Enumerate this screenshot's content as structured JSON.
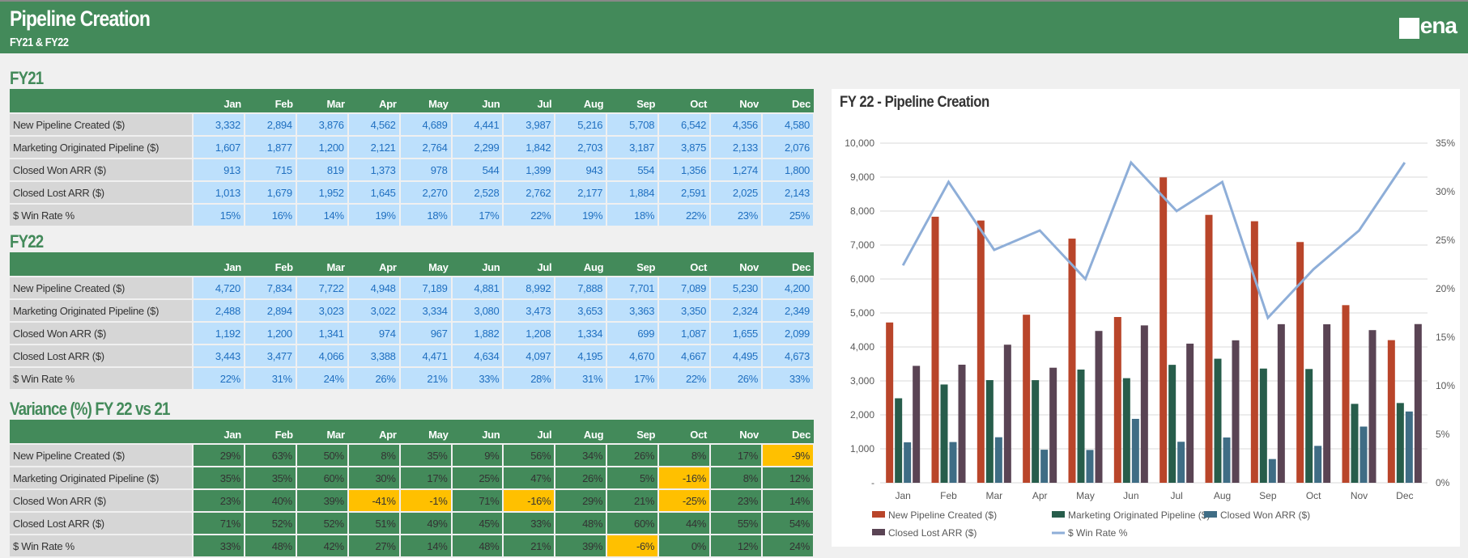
{
  "header": {
    "title": "Pipeline Creation",
    "subtitle": "FY21 & FY22",
    "logo": "vena"
  },
  "months": [
    "Jan",
    "Feb",
    "Mar",
    "Apr",
    "May",
    "Jun",
    "Jul",
    "Aug",
    "Sep",
    "Oct",
    "Nov",
    "Dec"
  ],
  "fy21": {
    "title": "FY21",
    "rows": [
      {
        "label": "New Pipeline Created ($)",
        "values": [
          "3,332",
          "2,894",
          "3,876",
          "4,562",
          "4,689",
          "4,441",
          "3,987",
          "5,216",
          "5,708",
          "6,542",
          "4,356",
          "4,580"
        ]
      },
      {
        "label": "Marketing Originated Pipeline ($)",
        "values": [
          "1,607",
          "1,877",
          "1,200",
          "2,121",
          "2,764",
          "2,299",
          "1,842",
          "2,703",
          "3,187",
          "3,875",
          "2,133",
          "2,076"
        ]
      },
      {
        "label": "Closed Won ARR ($)",
        "values": [
          "913",
          "715",
          "819",
          "1,373",
          "978",
          "544",
          "1,399",
          "943",
          "554",
          "1,356",
          "1,274",
          "1,800"
        ]
      },
      {
        "label": "Closed Lost ARR ($)",
        "values": [
          "1,013",
          "1,679",
          "1,952",
          "1,645",
          "2,270",
          "2,528",
          "2,762",
          "2,177",
          "1,884",
          "2,591",
          "2,025",
          "2,143"
        ]
      },
      {
        "label": "$ Win Rate %",
        "values": [
          "15%",
          "16%",
          "14%",
          "19%",
          "18%",
          "17%",
          "22%",
          "19%",
          "18%",
          "22%",
          "23%",
          "25%"
        ]
      }
    ]
  },
  "fy22": {
    "title": "FY22",
    "rows": [
      {
        "label": "New Pipeline Created ($)",
        "values": [
          "4,720",
          "7,834",
          "7,722",
          "4,948",
          "7,189",
          "4,881",
          "8,992",
          "7,888",
          "7,701",
          "7,089",
          "5,230",
          "4,200"
        ]
      },
      {
        "label": "Marketing Originated Pipeline ($)",
        "values": [
          "2,488",
          "2,894",
          "3,023",
          "3,022",
          "3,334",
          "3,080",
          "3,473",
          "3,653",
          "3,363",
          "3,350",
          "2,324",
          "2,349"
        ]
      },
      {
        "label": "Closed Won ARR ($)",
        "values": [
          "1,192",
          "1,200",
          "1,341",
          "974",
          "967",
          "1,882",
          "1,208",
          "1,334",
          "699",
          "1,087",
          "1,655",
          "2,099"
        ]
      },
      {
        "label": "Closed Lost ARR ($)",
        "values": [
          "3,443",
          "3,477",
          "4,066",
          "3,388",
          "4,471",
          "4,634",
          "4,097",
          "4,195",
          "4,670",
          "4,667",
          "4,495",
          "4,673"
        ]
      },
      {
        "label": "$ Win Rate %",
        "values": [
          "22%",
          "31%",
          "24%",
          "26%",
          "21%",
          "33%",
          "28%",
          "31%",
          "17%",
          "22%",
          "26%",
          "33%"
        ]
      }
    ]
  },
  "variance": {
    "title": "Variance (%) FY 22 vs 21",
    "rows": [
      {
        "label": "New Pipeline Created ($)",
        "values": [
          "29%",
          "63%",
          "50%",
          "8%",
          "35%",
          "9%",
          "56%",
          "34%",
          "26%",
          "8%",
          "17%",
          "-9%"
        ]
      },
      {
        "label": "Marketing Originated Pipeline ($)",
        "values": [
          "35%",
          "35%",
          "60%",
          "30%",
          "17%",
          "25%",
          "47%",
          "26%",
          "5%",
          "-16%",
          "8%",
          "12%"
        ]
      },
      {
        "label": "Closed Won ARR ($)",
        "values": [
          "23%",
          "40%",
          "39%",
          "-41%",
          "-1%",
          "71%",
          "-16%",
          "29%",
          "21%",
          "-25%",
          "23%",
          "14%"
        ]
      },
      {
        "label": "Closed Lost ARR ($)",
        "values": [
          "71%",
          "52%",
          "52%",
          "51%",
          "49%",
          "45%",
          "33%",
          "48%",
          "60%",
          "44%",
          "55%",
          "54%"
        ]
      },
      {
        "label": "$ Win Rate %",
        "values": [
          "33%",
          "48%",
          "42%",
          "27%",
          "14%",
          "48%",
          "21%",
          "39%",
          "-6%",
          "0%",
          "12%",
          "24%"
        ]
      }
    ]
  },
  "colors": {
    "green": "#438a5a",
    "negative": "#ffc000",
    "cell_blue": "#bde0fc",
    "text_blue": "#1f6fc0"
  },
  "chart_data": {
    "type": "bar+line",
    "title": "FY 22 - Pipeline Creation",
    "categories": [
      "Jan",
      "Feb",
      "Mar",
      "Apr",
      "May",
      "Jun",
      "Jul",
      "Aug",
      "Sep",
      "Oct",
      "Nov",
      "Dec"
    ],
    "ylim": [
      0,
      10000
    ],
    "yticks": [
      "-",
      "1,000",
      "2,000",
      "3,000",
      "4,000",
      "5,000",
      "6,000",
      "7,000",
      "8,000",
      "9,000",
      "10,000"
    ],
    "y2lim": [
      0,
      35
    ],
    "y2ticks": [
      "0%",
      "5%",
      "10%",
      "15%",
      "20%",
      "25%",
      "30%",
      "35%"
    ],
    "grid": true,
    "legend": "bottom",
    "series": [
      {
        "name": "New Pipeline Created ($)",
        "kind": "bar",
        "color": "#b9452a",
        "values": [
          4720,
          7834,
          7722,
          4948,
          7189,
          4881,
          8992,
          7888,
          7701,
          7089,
          5230,
          4200
        ]
      },
      {
        "name": "Marketing Originated Pipeline ($)",
        "kind": "bar",
        "color": "#275d4b",
        "values": [
          2488,
          2894,
          3023,
          3022,
          3334,
          3080,
          3473,
          3653,
          3363,
          3350,
          2324,
          2349
        ]
      },
      {
        "name": "Closed Won ARR ($)",
        "kind": "bar",
        "color": "#3f6d85",
        "values": [
          1192,
          1200,
          1341,
          974,
          967,
          1882,
          1208,
          1334,
          699,
          1087,
          1655,
          2099
        ]
      },
      {
        "name": "Closed Lost ARR ($)",
        "kind": "bar",
        "color": "#5a4454",
        "values": [
          3443,
          3477,
          4066,
          3388,
          4471,
          4634,
          4097,
          4195,
          4670,
          4667,
          4495,
          4673
        ]
      },
      {
        "name": "$ Win Rate %",
        "kind": "line",
        "axis": "right",
        "color": "#8eaed8",
        "values": [
          22.4,
          31,
          24,
          26,
          21,
          33,
          28,
          31,
          17,
          22,
          26,
          33
        ]
      }
    ]
  }
}
